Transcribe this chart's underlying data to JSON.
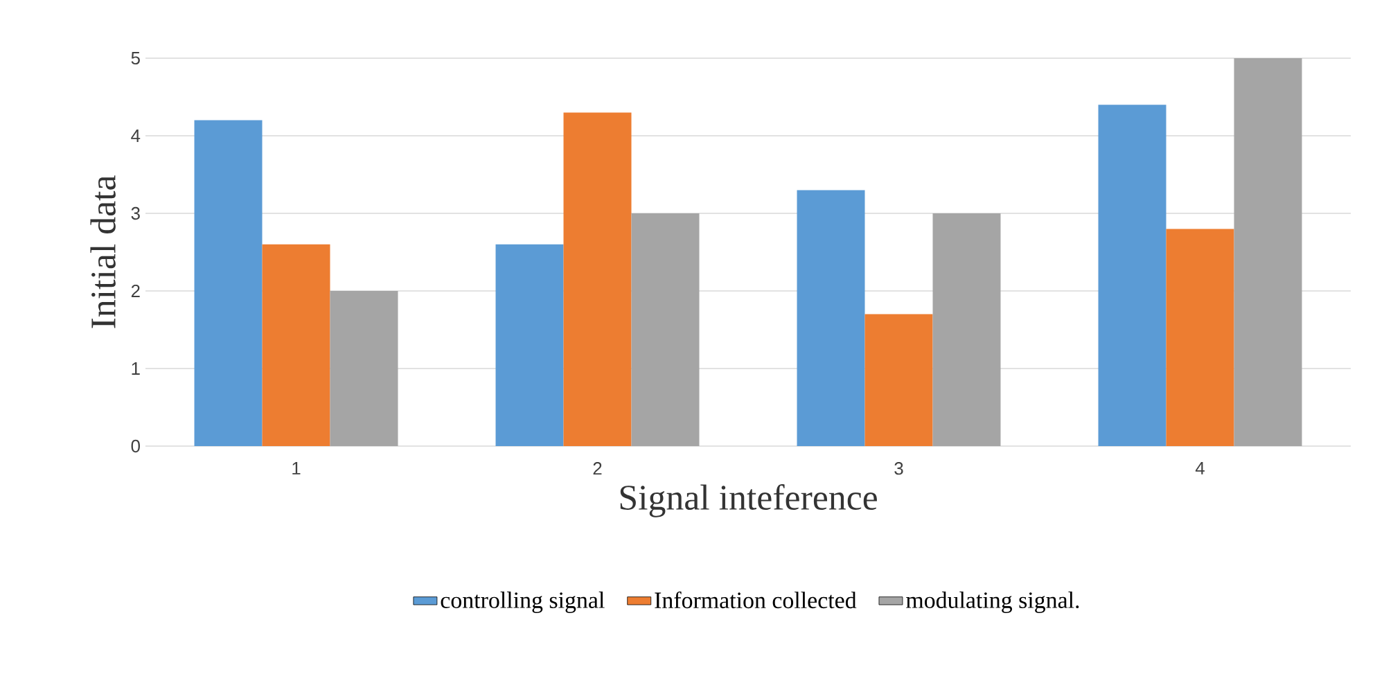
{
  "chart_data": {
    "type": "bar",
    "xlabel": "Signal inteference",
    "ylabel": "Initial data",
    "categories": [
      "1",
      "2",
      "3",
      "4"
    ],
    "series": [
      {
        "name": "controlling signal",
        "color": "#5b9bd5",
        "values": [
          4.2,
          2.6,
          3.3,
          4.4
        ]
      },
      {
        "name": "Information collected",
        "color": "#ed7d31",
        "values": [
          2.6,
          4.3,
          1.7,
          2.8
        ]
      },
      {
        "name": "modulating signal.",
        "color": "#a5a5a5",
        "values": [
          2.0,
          3.0,
          3.0,
          5.0
        ]
      }
    ],
    "ylim": [
      0,
      5
    ],
    "yticks": [
      0,
      1,
      2,
      3,
      4,
      5
    ],
    "grid": "y",
    "legend": "bottom"
  }
}
